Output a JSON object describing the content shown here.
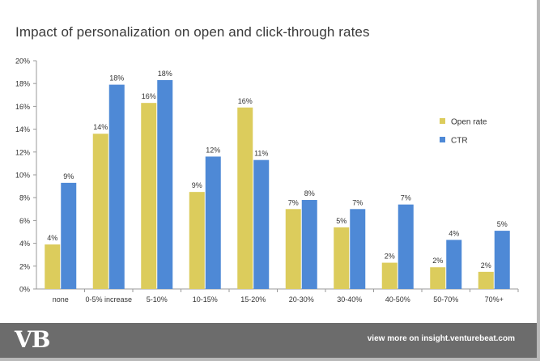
{
  "title": "Impact of personalization on open and click-through rates",
  "footer": {
    "logo": "VB",
    "link_text": "view more on insight.venturebeat.com"
  },
  "colors": {
    "open_rate": "#dccc5c",
    "ctr": "#4e89d6",
    "axis": "#9a9a9a",
    "text": "#333333"
  },
  "chart_data": {
    "type": "bar",
    "title": "Impact of personalization on open and click-through rates",
    "xlabel": "",
    "ylabel": "",
    "ylim": [
      0,
      20
    ],
    "yticks": [
      "0%",
      "2%",
      "4%",
      "6%",
      "8%",
      "10%",
      "12%",
      "14%",
      "16%",
      "18%",
      "20%"
    ],
    "grid": false,
    "legend_position": "right",
    "categories": [
      "none",
      "0-5% increase",
      "5-10%",
      "10-15%",
      "15-20%",
      "20-30%",
      "30-40%",
      "40-50%",
      "50-70%",
      "70%+"
    ],
    "series": [
      {
        "name": "Open rate",
        "values": [
          3.9,
          13.6,
          16.3,
          8.5,
          15.9,
          7.0,
          5.4,
          2.3,
          1.9,
          1.5
        ],
        "labels": [
          "4%",
          "14%",
          "16%",
          "9%",
          "16%",
          "7%",
          "5%",
          "2%",
          "2%",
          "2%"
        ]
      },
      {
        "name": "CTR",
        "values": [
          9.3,
          17.9,
          18.3,
          11.6,
          11.3,
          7.8,
          7.0,
          7.4,
          4.3,
          5.1
        ],
        "labels": [
          "9%",
          "18%",
          "18%",
          "12%",
          "11%",
          "8%",
          "7%",
          "7%",
          "4%",
          "5%"
        ]
      }
    ]
  }
}
